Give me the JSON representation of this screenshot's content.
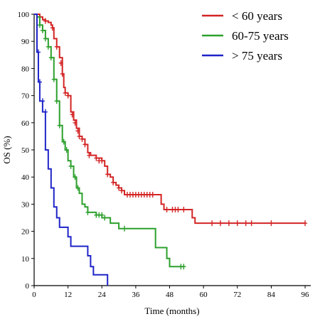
{
  "chart_data": {
    "type": "line",
    "subtype": "kaplan-meier step curve with censor marks",
    "xlabel": "Time (months)",
    "ylabel": "OS (%)",
    "xlim": [
      0,
      98
    ],
    "ylim": [
      0,
      100
    ],
    "xticks": [
      "0",
      "12",
      "24",
      "36",
      "48",
      "60",
      "72",
      "84",
      "96"
    ],
    "yticks": [
      "0",
      "10",
      "20",
      "30",
      "40",
      "50",
      "60",
      "70",
      "80",
      "90",
      "100"
    ],
    "grid": false,
    "legend_position": "top-right",
    "series": [
      {
        "name": "< 60 years",
        "color": "#d32424",
        "steps": [
          [
            0,
            100
          ],
          [
            2,
            99
          ],
          [
            3,
            98
          ],
          [
            4,
            97.5
          ],
          [
            5,
            97
          ],
          [
            6,
            96
          ],
          [
            6.5,
            95
          ],
          [
            7,
            91
          ],
          [
            8,
            88
          ],
          [
            9,
            84
          ],
          [
            10,
            78
          ],
          [
            10.5,
            73
          ],
          [
            11,
            71
          ],
          [
            12,
            70
          ],
          [
            13,
            64
          ],
          [
            14,
            61
          ],
          [
            15,
            58
          ],
          [
            16,
            55
          ],
          [
            17,
            54
          ],
          [
            18,
            52
          ],
          [
            19,
            49
          ],
          [
            20,
            48
          ],
          [
            22,
            47
          ],
          [
            24,
            46
          ],
          [
            25,
            44
          ],
          [
            26,
            41
          ],
          [
            27,
            40
          ],
          [
            28,
            38
          ],
          [
            29,
            37
          ],
          [
            30,
            36
          ],
          [
            31,
            35
          ],
          [
            32,
            33.5
          ],
          [
            45,
            30
          ],
          [
            46,
            28
          ],
          [
            56,
            25
          ],
          [
            57,
            23
          ],
          [
            96,
            23
          ]
        ],
        "censored": [
          [
            4,
            97.5
          ],
          [
            6.5,
            95
          ],
          [
            8,
            88
          ],
          [
            9.5,
            82
          ],
          [
            10,
            78
          ],
          [
            11,
            71
          ],
          [
            12,
            70
          ],
          [
            13.5,
            63
          ],
          [
            14.5,
            60
          ],
          [
            15.5,
            57
          ],
          [
            16,
            55
          ],
          [
            17,
            54
          ],
          [
            18,
            52
          ],
          [
            19.5,
            48
          ],
          [
            22,
            47
          ],
          [
            23,
            46
          ],
          [
            24,
            46
          ],
          [
            26,
            41
          ],
          [
            28,
            38
          ],
          [
            30,
            36
          ],
          [
            31,
            35
          ],
          [
            33,
            33.5
          ],
          [
            34,
            33.5
          ],
          [
            35,
            33.5
          ],
          [
            36,
            33.5
          ],
          [
            37,
            33.5
          ],
          [
            38,
            33.5
          ],
          [
            39,
            33.5
          ],
          [
            40,
            33.5
          ],
          [
            41,
            33.5
          ],
          [
            42,
            33.5
          ],
          [
            47,
            28
          ],
          [
            49,
            28
          ],
          [
            50,
            28
          ],
          [
            51,
            28
          ],
          [
            53,
            28
          ],
          [
            63,
            23
          ],
          [
            66,
            23
          ],
          [
            69,
            23
          ],
          [
            72,
            23
          ],
          [
            75,
            23
          ],
          [
            77,
            23
          ],
          [
            84,
            23
          ],
          [
            96,
            23
          ]
        ]
      },
      {
        "name": "60-75 years",
        "color": "#2ca02c",
        "steps": [
          [
            0,
            100
          ],
          [
            1,
            99
          ],
          [
            2,
            96
          ],
          [
            3,
            94
          ],
          [
            4,
            91
          ],
          [
            5,
            88
          ],
          [
            6,
            84
          ],
          [
            7,
            76
          ],
          [
            8,
            68
          ],
          [
            9,
            59
          ],
          [
            10,
            53
          ],
          [
            11,
            50
          ],
          [
            12,
            46
          ],
          [
            13,
            44
          ],
          [
            14,
            40
          ],
          [
            15,
            36
          ],
          [
            16,
            34
          ],
          [
            17,
            30
          ],
          [
            18,
            29
          ],
          [
            19,
            27
          ],
          [
            22,
            26
          ],
          [
            24,
            25
          ],
          [
            27,
            23
          ],
          [
            30,
            21
          ],
          [
            42,
            21
          ],
          [
            43,
            14
          ],
          [
            47,
            10
          ],
          [
            48,
            7
          ],
          [
            53,
            7
          ]
        ],
        "censored": [
          [
            2,
            96
          ],
          [
            3,
            94
          ],
          [
            4,
            91
          ],
          [
            5,
            88
          ],
          [
            6,
            84
          ],
          [
            7,
            76
          ],
          [
            8,
            68
          ],
          [
            9,
            59
          ],
          [
            10.5,
            53
          ],
          [
            11.5,
            50
          ],
          [
            13,
            44
          ],
          [
            14.5,
            40
          ],
          [
            15.5,
            36
          ],
          [
            19,
            27
          ],
          [
            22,
            26
          ],
          [
            23,
            26
          ],
          [
            24,
            26
          ],
          [
            25,
            25
          ],
          [
            32,
            21
          ],
          [
            52,
            7
          ],
          [
            53,
            7
          ]
        ]
      },
      {
        "name": "> 75 years",
        "color": "#1f24c8",
        "steps": [
          [
            0,
            100
          ],
          [
            1,
            86
          ],
          [
            1.5,
            75
          ],
          [
            2,
            68
          ],
          [
            3,
            64
          ],
          [
            4,
            50
          ],
          [
            5,
            43
          ],
          [
            6,
            36
          ],
          [
            7,
            29
          ],
          [
            8,
            25
          ],
          [
            9,
            21.5
          ],
          [
            12,
            18
          ],
          [
            13,
            14.5
          ],
          [
            19,
            11
          ],
          [
            20,
            7
          ],
          [
            21,
            4
          ],
          [
            26,
            0
          ]
        ],
        "censored": [
          [
            1.5,
            86
          ],
          [
            2,
            75
          ],
          [
            3,
            68
          ],
          [
            4,
            64
          ]
        ]
      }
    ]
  }
}
